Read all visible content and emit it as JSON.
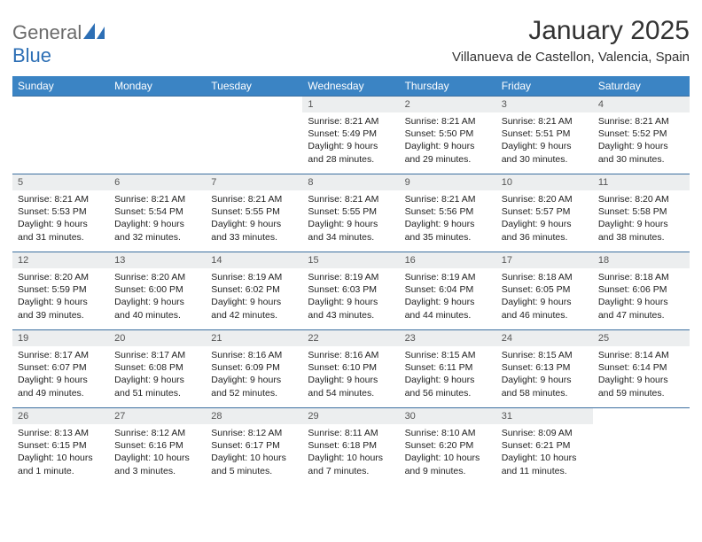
{
  "brand": {
    "part1": "General",
    "part2": "Blue"
  },
  "title": "January 2025",
  "subtitle": "Villanueva de Castellon, Valencia, Spain",
  "colors": {
    "header_bg": "#3b84c4",
    "header_text": "#ffffff",
    "daynum_bg": "#eceeef",
    "daynum_text": "#555555",
    "cell_border": "#3b6fa0",
    "logo_gray": "#6b6b6b",
    "logo_blue": "#2d6fb5"
  },
  "layout": {
    "cols": 7,
    "rows": 5,
    "first_weekday_index": 3
  },
  "weekdays": [
    "Sunday",
    "Monday",
    "Tuesday",
    "Wednesday",
    "Thursday",
    "Friday",
    "Saturday"
  ],
  "days": [
    {
      "n": 1,
      "sunrise": "8:21 AM",
      "sunset": "5:49 PM",
      "daylight": "9 hours and 28 minutes."
    },
    {
      "n": 2,
      "sunrise": "8:21 AM",
      "sunset": "5:50 PM",
      "daylight": "9 hours and 29 minutes."
    },
    {
      "n": 3,
      "sunrise": "8:21 AM",
      "sunset": "5:51 PM",
      "daylight": "9 hours and 30 minutes."
    },
    {
      "n": 4,
      "sunrise": "8:21 AM",
      "sunset": "5:52 PM",
      "daylight": "9 hours and 30 minutes."
    },
    {
      "n": 5,
      "sunrise": "8:21 AM",
      "sunset": "5:53 PM",
      "daylight": "9 hours and 31 minutes."
    },
    {
      "n": 6,
      "sunrise": "8:21 AM",
      "sunset": "5:54 PM",
      "daylight": "9 hours and 32 minutes."
    },
    {
      "n": 7,
      "sunrise": "8:21 AM",
      "sunset": "5:55 PM",
      "daylight": "9 hours and 33 minutes."
    },
    {
      "n": 8,
      "sunrise": "8:21 AM",
      "sunset": "5:55 PM",
      "daylight": "9 hours and 34 minutes."
    },
    {
      "n": 9,
      "sunrise": "8:21 AM",
      "sunset": "5:56 PM",
      "daylight": "9 hours and 35 minutes."
    },
    {
      "n": 10,
      "sunrise": "8:20 AM",
      "sunset": "5:57 PM",
      "daylight": "9 hours and 36 minutes."
    },
    {
      "n": 11,
      "sunrise": "8:20 AM",
      "sunset": "5:58 PM",
      "daylight": "9 hours and 38 minutes."
    },
    {
      "n": 12,
      "sunrise": "8:20 AM",
      "sunset": "5:59 PM",
      "daylight": "9 hours and 39 minutes."
    },
    {
      "n": 13,
      "sunrise": "8:20 AM",
      "sunset": "6:00 PM",
      "daylight": "9 hours and 40 minutes."
    },
    {
      "n": 14,
      "sunrise": "8:19 AM",
      "sunset": "6:02 PM",
      "daylight": "9 hours and 42 minutes."
    },
    {
      "n": 15,
      "sunrise": "8:19 AM",
      "sunset": "6:03 PM",
      "daylight": "9 hours and 43 minutes."
    },
    {
      "n": 16,
      "sunrise": "8:19 AM",
      "sunset": "6:04 PM",
      "daylight": "9 hours and 44 minutes."
    },
    {
      "n": 17,
      "sunrise": "8:18 AM",
      "sunset": "6:05 PM",
      "daylight": "9 hours and 46 minutes."
    },
    {
      "n": 18,
      "sunrise": "8:18 AM",
      "sunset": "6:06 PM",
      "daylight": "9 hours and 47 minutes."
    },
    {
      "n": 19,
      "sunrise": "8:17 AM",
      "sunset": "6:07 PM",
      "daylight": "9 hours and 49 minutes."
    },
    {
      "n": 20,
      "sunrise": "8:17 AM",
      "sunset": "6:08 PM",
      "daylight": "9 hours and 51 minutes."
    },
    {
      "n": 21,
      "sunrise": "8:16 AM",
      "sunset": "6:09 PM",
      "daylight": "9 hours and 52 minutes."
    },
    {
      "n": 22,
      "sunrise": "8:16 AM",
      "sunset": "6:10 PM",
      "daylight": "9 hours and 54 minutes."
    },
    {
      "n": 23,
      "sunrise": "8:15 AM",
      "sunset": "6:11 PM",
      "daylight": "9 hours and 56 minutes."
    },
    {
      "n": 24,
      "sunrise": "8:15 AM",
      "sunset": "6:13 PM",
      "daylight": "9 hours and 58 minutes."
    },
    {
      "n": 25,
      "sunrise": "8:14 AM",
      "sunset": "6:14 PM",
      "daylight": "9 hours and 59 minutes."
    },
    {
      "n": 26,
      "sunrise": "8:13 AM",
      "sunset": "6:15 PM",
      "daylight": "10 hours and 1 minute."
    },
    {
      "n": 27,
      "sunrise": "8:12 AM",
      "sunset": "6:16 PM",
      "daylight": "10 hours and 3 minutes."
    },
    {
      "n": 28,
      "sunrise": "8:12 AM",
      "sunset": "6:17 PM",
      "daylight": "10 hours and 5 minutes."
    },
    {
      "n": 29,
      "sunrise": "8:11 AM",
      "sunset": "6:18 PM",
      "daylight": "10 hours and 7 minutes."
    },
    {
      "n": 30,
      "sunrise": "8:10 AM",
      "sunset": "6:20 PM",
      "daylight": "10 hours and 9 minutes."
    },
    {
      "n": 31,
      "sunrise": "8:09 AM",
      "sunset": "6:21 PM",
      "daylight": "10 hours and 11 minutes."
    }
  ],
  "labels": {
    "sunrise": "Sunrise:",
    "sunset": "Sunset:",
    "daylight": "Daylight:"
  }
}
